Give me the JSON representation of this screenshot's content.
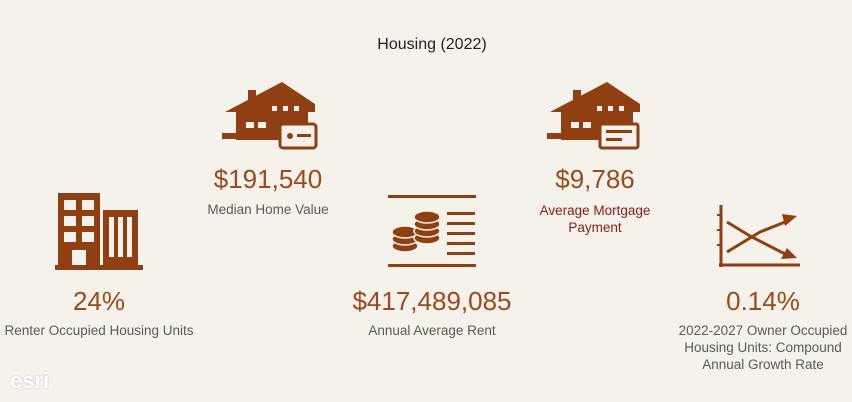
{
  "title": "Housing (2022)",
  "metrics": [
    {
      "value": "24%",
      "label": "Renter Occupied Housing Units"
    },
    {
      "value": "$191,540",
      "label": "Median Home Value"
    },
    {
      "value": "$417,489,085",
      "label": "Annual Average Rent"
    },
    {
      "value": "$9,786",
      "label": "Average Mortgage Payment"
    },
    {
      "value": "0.14%",
      "label": "2022-2027 Owner Occupied Housing Units: Compound Annual Growth Rate"
    }
  ],
  "logo": "esri"
}
